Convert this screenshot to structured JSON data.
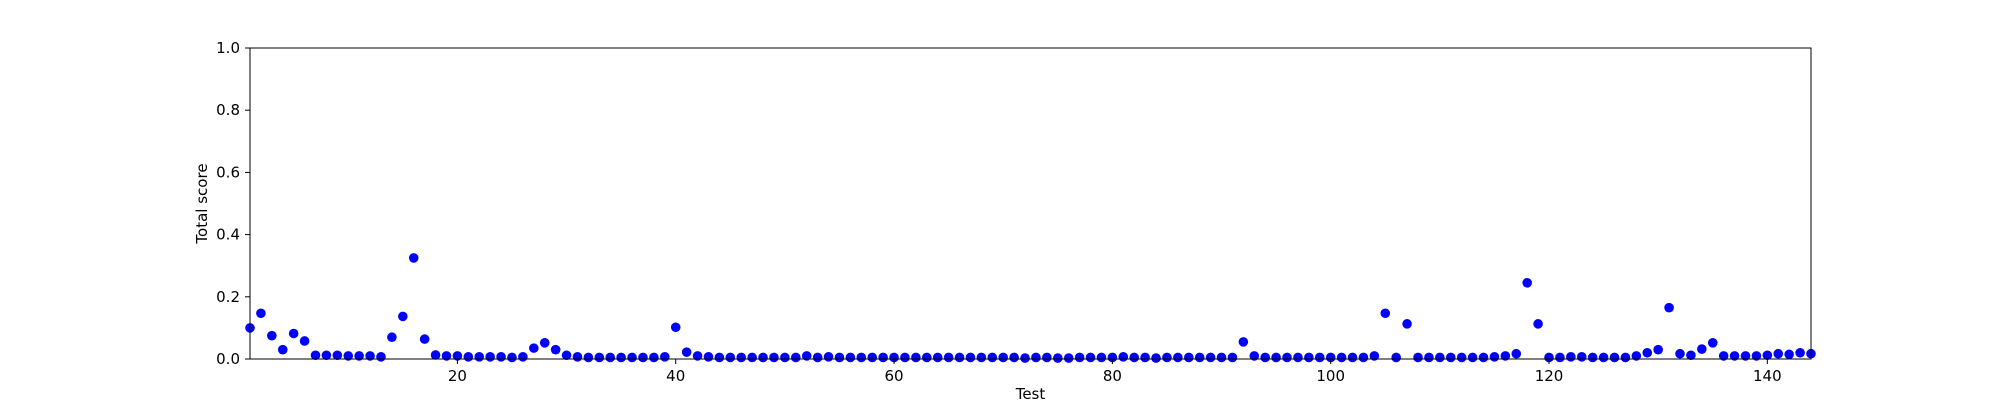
{
  "chart_data": {
    "type": "scatter",
    "xlabel": "Test",
    "ylabel": "Total score",
    "xlim": [
      1,
      144
    ],
    "ylim": [
      0,
      1.0
    ],
    "x_ticks": [
      20,
      40,
      60,
      80,
      100,
      120,
      140
    ],
    "y_ticks": [
      0.0,
      0.2,
      0.4,
      0.6,
      0.8,
      1.0
    ],
    "x_tick_labels": [
      "20",
      "40",
      "60",
      "80",
      "100",
      "120",
      "140"
    ],
    "y_tick_labels": [
      "0.0",
      "0.2",
      "0.4",
      "0.6",
      "0.8",
      "1.0"
    ],
    "grid": false,
    "marker_color": "#0000ff",
    "x": [
      1,
      2,
      3,
      4,
      5,
      6,
      7,
      8,
      9,
      10,
      11,
      12,
      13,
      14,
      15,
      16,
      17,
      18,
      19,
      20,
      21,
      22,
      23,
      24,
      25,
      26,
      27,
      28,
      29,
      30,
      31,
      32,
      33,
      34,
      35,
      36,
      37,
      38,
      39,
      40,
      41,
      42,
      43,
      44,
      45,
      46,
      47,
      48,
      49,
      50,
      51,
      52,
      53,
      54,
      55,
      56,
      57,
      58,
      59,
      60,
      61,
      62,
      63,
      64,
      65,
      66,
      67,
      68,
      69,
      70,
      71,
      72,
      73,
      74,
      75,
      76,
      77,
      78,
      79,
      80,
      81,
      82,
      83,
      84,
      85,
      86,
      87,
      88,
      89,
      90,
      91,
      92,
      93,
      94,
      95,
      96,
      97,
      98,
      99,
      100,
      101,
      102,
      103,
      104,
      105,
      106,
      107,
      108,
      109,
      110,
      111,
      112,
      113,
      114,
      115,
      116,
      117,
      118,
      119,
      120,
      121,
      122,
      123,
      124,
      125,
      126,
      127,
      128,
      129,
      130,
      131,
      132,
      133,
      134,
      135,
      136,
      137,
      138,
      139,
      140,
      141,
      142,
      143,
      144
    ],
    "y": [
      0.1,
      0.147,
      0.075,
      0.03,
      0.082,
      0.058,
      0.012,
      0.012,
      0.012,
      0.01,
      0.01,
      0.01,
      0.007,
      0.07,
      0.137,
      0.325,
      0.064,
      0.013,
      0.01,
      0.01,
      0.007,
      0.007,
      0.007,
      0.007,
      0.005,
      0.007,
      0.035,
      0.052,
      0.03,
      0.012,
      0.007,
      0.005,
      0.005,
      0.005,
      0.005,
      0.005,
      0.005,
      0.005,
      0.007,
      0.102,
      0.022,
      0.01,
      0.007,
      0.005,
      0.005,
      0.005,
      0.005,
      0.005,
      0.005,
      0.005,
      0.005,
      0.01,
      0.005,
      0.007,
      0.005,
      0.005,
      0.005,
      0.005,
      0.005,
      0.005,
      0.005,
      0.005,
      0.005,
      0.005,
      0.005,
      0.005,
      0.005,
      0.005,
      0.005,
      0.005,
      0.005,
      0.003,
      0.005,
      0.005,
      0.003,
      0.003,
      0.005,
      0.005,
      0.005,
      0.005,
      0.007,
      0.005,
      0.005,
      0.003,
      0.005,
      0.005,
      0.005,
      0.005,
      0.005,
      0.005,
      0.005,
      0.055,
      0.01,
      0.005,
      0.005,
      0.005,
      0.005,
      0.005,
      0.005,
      0.005,
      0.005,
      0.005,
      0.005,
      0.01,
      0.147,
      0.005,
      0.113,
      0.005,
      0.005,
      0.005,
      0.005,
      0.005,
      0.005,
      0.005,
      0.007,
      0.01,
      0.017,
      0.245,
      0.113,
      0.005,
      0.005,
      0.007,
      0.007,
      0.005,
      0.005,
      0.005,
      0.005,
      0.01,
      0.02,
      0.03,
      0.165,
      0.017,
      0.012,
      0.032,
      0.052,
      0.01,
      0.01,
      0.01,
      0.01,
      0.012,
      0.017,
      0.015,
      0.02,
      0.017
    ]
  }
}
